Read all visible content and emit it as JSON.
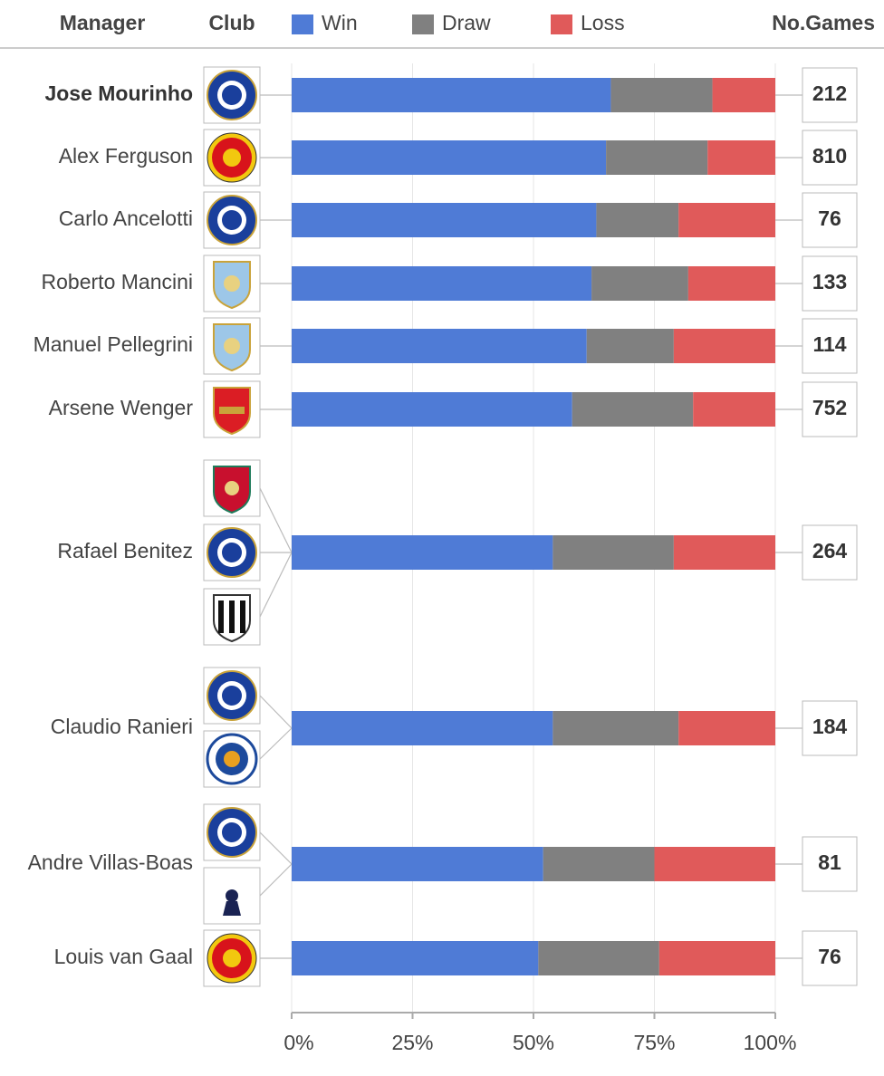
{
  "chart_data": {
    "type": "bar",
    "orientation": "horizontal",
    "stacked": true,
    "headers": {
      "manager": "Manager",
      "club": "Club",
      "games": "No.Games"
    },
    "categories": [
      "Jose Mourinho",
      "Alex Ferguson",
      "Carlo Ancelotti",
      "Roberto Mancini",
      "Manuel Pellegrini",
      "Arsene Wenger",
      "Rafael Benitez",
      "Claudio Ranieri",
      "Andre Villas-Boas",
      "Louis van Gaal"
    ],
    "series": [
      {
        "name": "Win",
        "color": "#4f7bd6",
        "values": [
          66,
          65,
          63,
          62,
          61,
          58,
          54,
          54,
          52,
          51
        ]
      },
      {
        "name": "Draw",
        "color": "#808080",
        "values": [
          21,
          21,
          17,
          20,
          18,
          25,
          25,
          26,
          23,
          25
        ]
      },
      {
        "name": "Loss",
        "color": "#e05a5a",
        "values": [
          13,
          14,
          20,
          18,
          21,
          17,
          21,
          20,
          25,
          24
        ]
      }
    ],
    "games": [
      212,
      810,
      76,
      133,
      114,
      752,
      264,
      184,
      81,
      76
    ],
    "xlim": [
      0,
      100
    ],
    "xticks": [
      {
        "value": 0,
        "label": "0%"
      },
      {
        "value": 25,
        "label": "25%"
      },
      {
        "value": 50,
        "label": "50%"
      },
      {
        "value": 75,
        "label": "75%"
      },
      {
        "value": 100,
        "label": "100%"
      }
    ],
    "grid": true
  }
}
